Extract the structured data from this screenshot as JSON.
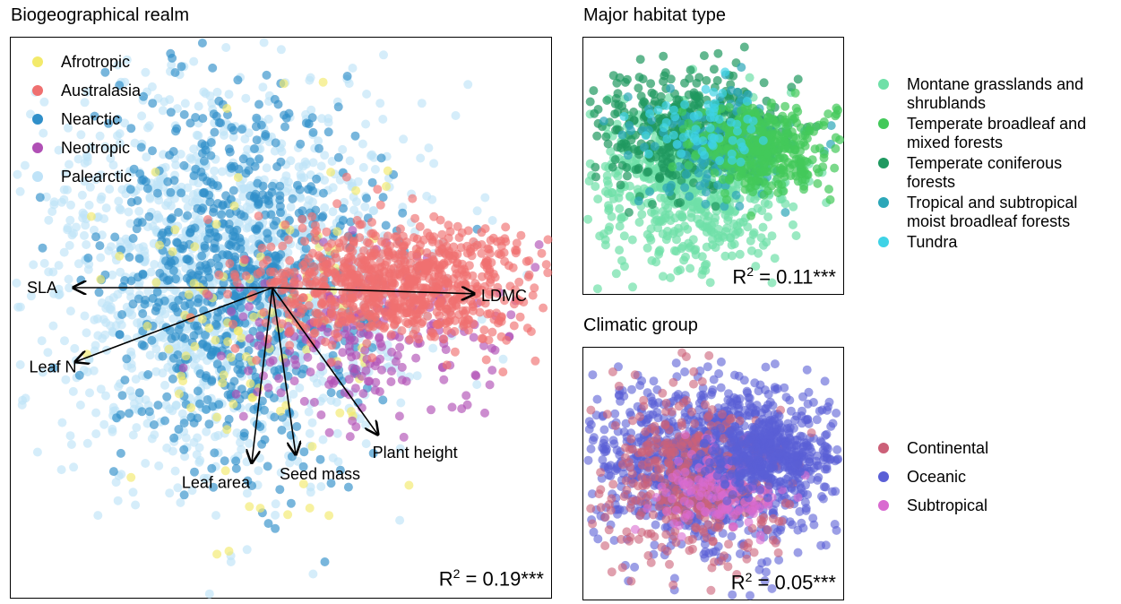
{
  "chart_data": [
    {
      "type": "scatter",
      "title": "Biogeographical realm",
      "series": [
        {
          "name": "Afrotropic",
          "color": "#f3ea6b"
        },
        {
          "name": "Australasia",
          "color": "#ef7070"
        },
        {
          "name": "Nearctic",
          "color": "#2f8fc9"
        },
        {
          "name": "Neotropic",
          "color": "#b050b5"
        },
        {
          "name": "Palearctic",
          "color": "#bfe3f8"
        }
      ],
      "vectors": [
        {
          "label": "SLA",
          "dx": -1.0,
          "dy": 0.0
        },
        {
          "label": "LDMC",
          "dx": 1.0,
          "dy": -0.03
        },
        {
          "label": "Leaf N",
          "dx": -0.93,
          "dy": -0.35
        },
        {
          "label": "Leaf area",
          "dx": -0.11,
          "dy": -0.93
        },
        {
          "label": "Seed mass",
          "dx": 0.13,
          "dy": -0.93
        },
        {
          "label": "Plant height",
          "dx": 0.56,
          "dy": -0.78
        }
      ],
      "r2_prefix": "R",
      "r2_exp": "2",
      "r2_value": "= 0.19***",
      "legend": "top-left",
      "grid": false
    },
    {
      "type": "scatter",
      "title": "Major habitat type",
      "series": [
        {
          "name": "Montane grasslands and shrublands",
          "name_lines": [
            "Montane grasslands and",
            "shrublands"
          ],
          "color": "#6fe0a8"
        },
        {
          "name": "Temperate broadleaf and mixed forests",
          "name_lines": [
            "Temperate broadleaf and",
            "mixed forests"
          ],
          "color": "#43c95a"
        },
        {
          "name": "Temperate coniferous forests",
          "name_lines": [
            "Temperate coniferous",
            "forests"
          ],
          "color": "#1f9960"
        },
        {
          "name": "Tropical and subtropical moist broadleaf forests",
          "name_lines": [
            "Tropical and subtropical",
            "moist broadleaf forests"
          ],
          "color": "#2ca7b8"
        },
        {
          "name": "Tundra",
          "name_lines": [
            "Tundra"
          ],
          "color": "#3fd3e6"
        }
      ],
      "r2_prefix": "R",
      "r2_exp": "2",
      "r2_value": "= 0.11***",
      "legend": "right",
      "grid": false
    },
    {
      "type": "scatter",
      "title": "Climatic group",
      "series": [
        {
          "name": "Continental",
          "name_lines": [
            "Continental"
          ],
          "color": "#cc6078"
        },
        {
          "name": "Oceanic",
          "name_lines": [
            "Oceanic"
          ],
          "color": "#5a5fd6"
        },
        {
          "name": "Subtropical",
          "name_lines": [
            "Subtropical"
          ],
          "color": "#d96ad0"
        }
      ],
      "r2_prefix": "R",
      "r2_exp": "2",
      "r2_value": "= 0.05***",
      "legend": "right",
      "grid": false
    }
  ]
}
